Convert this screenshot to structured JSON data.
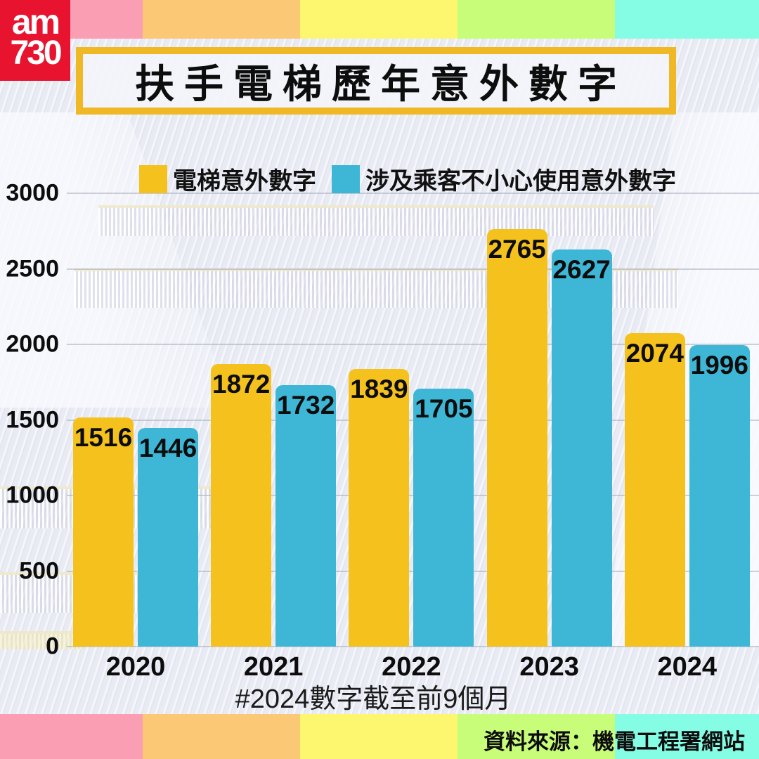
{
  "brand": {
    "logo_line1": "am",
    "logo_line2": "730"
  },
  "title": "扶手電梯歷年意外數字",
  "legend": [
    {
      "label": "電梯意外數字",
      "color": "#f5c21d"
    },
    {
      "label": "涉及乘客不小心使用意外數字",
      "color": "#3eb7d6"
    }
  ],
  "note": "#2024數字截至前9個月",
  "source": "資料來源：機電工程署網站",
  "colors": {
    "title_border_gold": "#f1b826",
    "logo_red": "#e8132e",
    "bar_yellow": "#f5c21d",
    "bar_blue": "#3eb7d6",
    "background": "#e9ebf4"
  },
  "stripe_colors": [
    "#fa9fb3",
    "#fbc876",
    "#fcf76f",
    "#c8fd79",
    "#85fce4"
  ],
  "chart_data": {
    "type": "bar",
    "categories": [
      "2020",
      "2021",
      "2022",
      "2023",
      "2024"
    ],
    "series": [
      {
        "name": "電梯意外數字",
        "color": "#f5c21d",
        "values": [
          1516,
          1872,
          1839,
          2765,
          2074
        ]
      },
      {
        "name": "涉及乘客不小心使用意外數字",
        "color": "#3eb7d6",
        "values": [
          1446,
          1732,
          1705,
          2627,
          1996
        ]
      }
    ],
    "title": "扶手電梯歷年意外數字",
    "xlabel": "",
    "ylabel": "",
    "ylim": [
      0,
      3000
    ],
    "yticks": [
      0,
      500,
      1000,
      1500,
      2000,
      2500,
      3000
    ],
    "grid": true,
    "legend_position": "top",
    "footnote": "#2024數字截至前9個月",
    "source": "資料來源：機電工程署網站"
  }
}
